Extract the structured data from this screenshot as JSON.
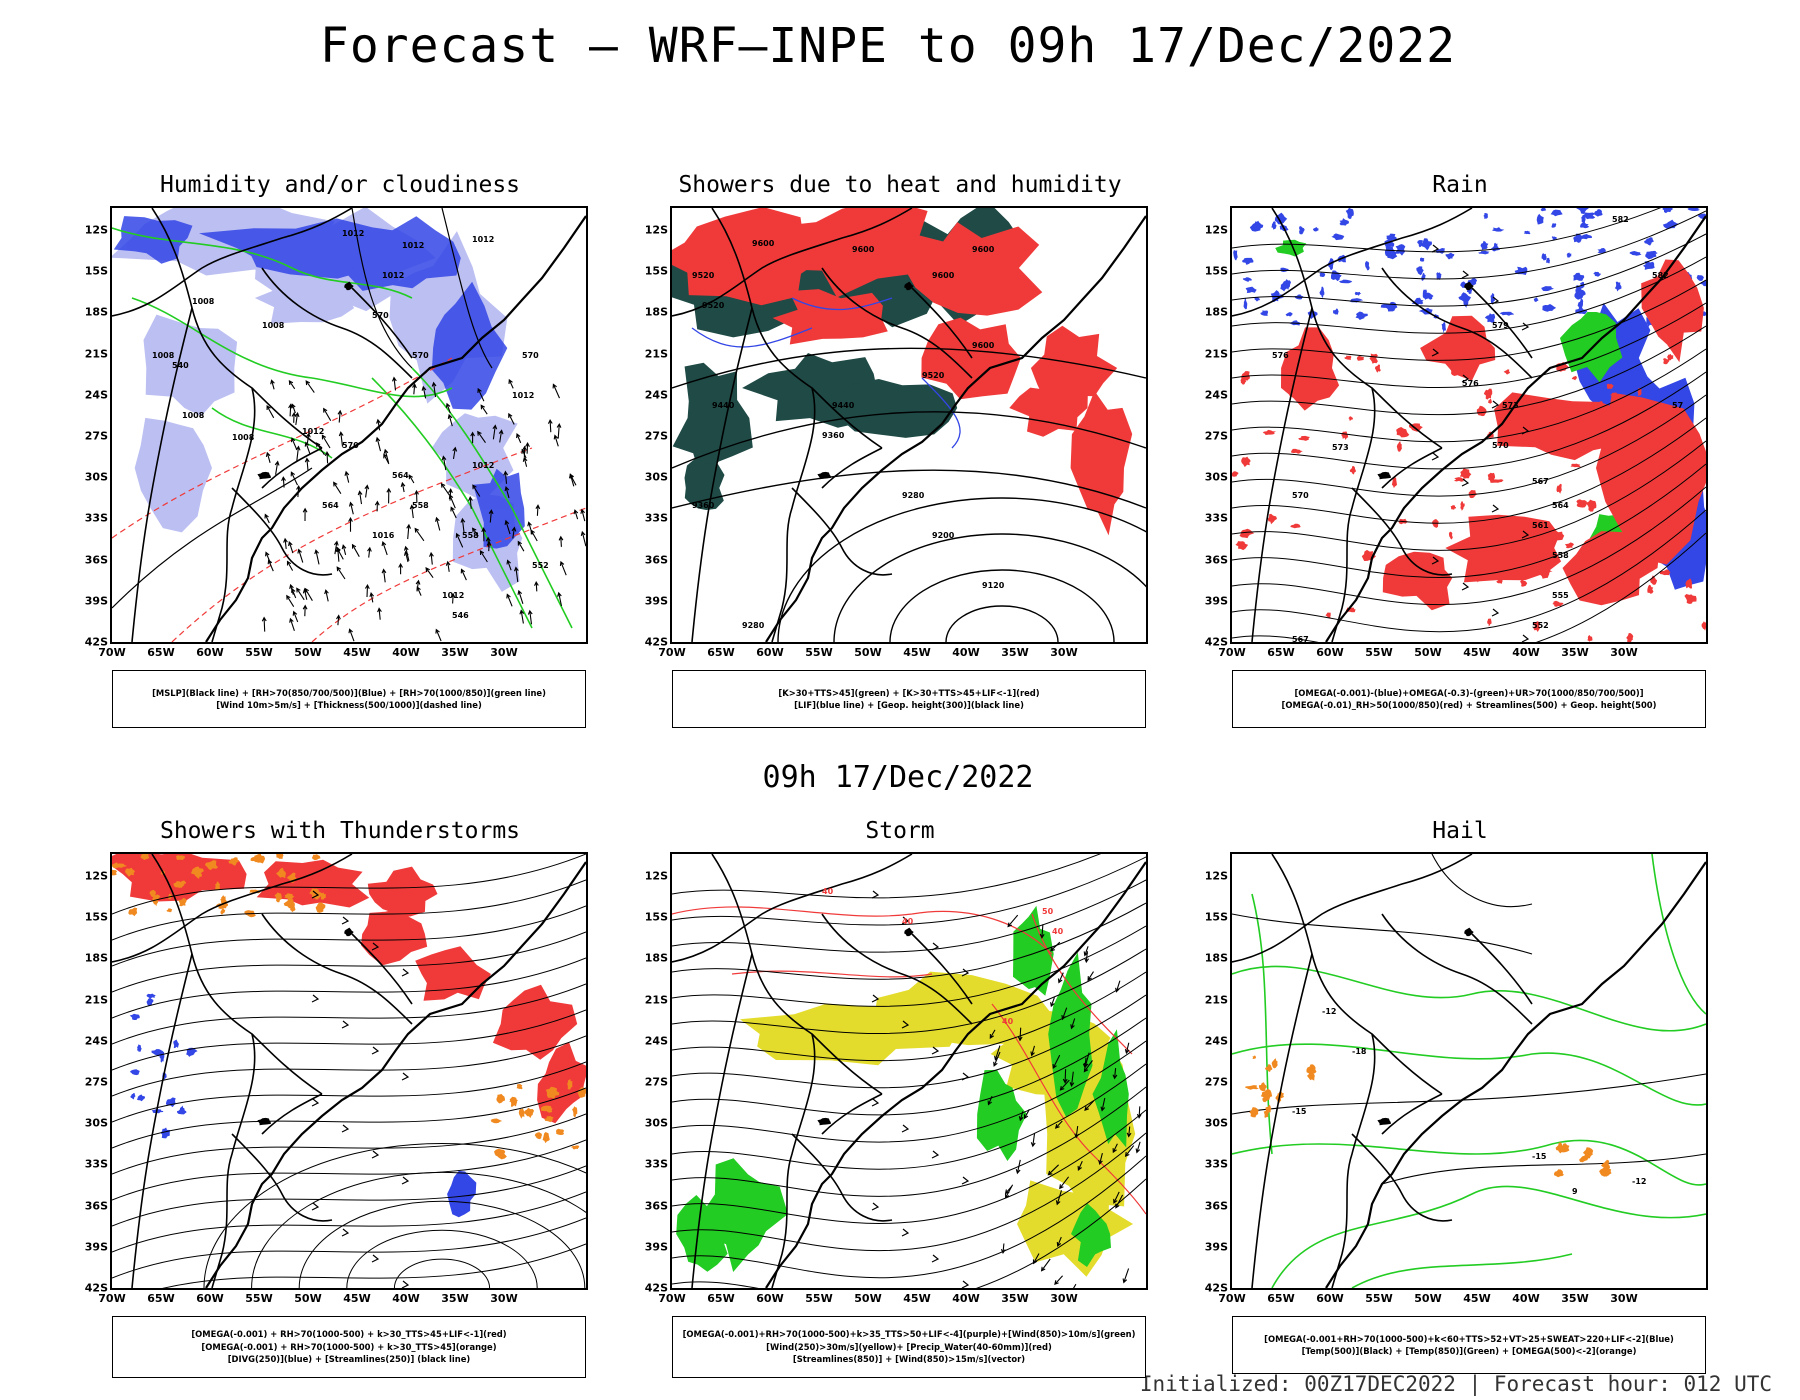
{
  "header": {
    "title": "Forecast – WRF–INPE to 09h 17/Dec/2022"
  },
  "middle_date": "09h 17/Dec/2022",
  "footer": "Initialized: 00Z17DEC2022 | Forecast hour: 012 UTC",
  "axes": {
    "lat_labels": [
      "12S",
      "15S",
      "18S",
      "21S",
      "24S",
      "27S",
      "30S",
      "33S",
      "36S",
      "39S",
      "42S"
    ],
    "lon_labels": [
      "70W",
      "65W",
      "60W",
      "55W",
      "50W",
      "45W",
      "40W",
      "35W",
      "30W"
    ]
  },
  "colors": {
    "blue": "#3346e6",
    "green": "#22cc22",
    "red": "#f03a3a",
    "dark_green": "#1f4a46",
    "orange": "#f08a20",
    "yellow": "#e4dc2c"
  },
  "panels": [
    {
      "title": "Humidity and/or cloudiness",
      "legend": [
        "[MSLP](Black line) + [RH>70(850/700/500)](Blue) + [RH>70(1000/850)](green line)",
        "[Wind 10m>5m/s] + [Thickness(500/1000)](dashed line)"
      ],
      "contour_labels": [
        "1012",
        "1012",
        "1012",
        "1012",
        "1008",
        "1008",
        "1008",
        "1008",
        "1008",
        "1012",
        "1012",
        "1012",
        "1016",
        "1012",
        "570",
        "570",
        "570",
        "570",
        "564",
        "564",
        "558",
        "558",
        "552",
        "546",
        "540"
      ]
    },
    {
      "title": "Showers due to heat and humidity",
      "legend": [
        "[K>30+TTS>45](green) + [K>30+TTS>45+LIF<-1](red)",
        "[LIF](blue line) + [Geop. height(300)](black line)"
      ],
      "contour_labels": [
        "9600",
        "9600",
        "9600",
        "9600",
        "9520",
        "9520",
        "9440",
        "9440",
        "9600",
        "9520",
        "9360",
        "9360",
        "9280",
        "9200",
        "9120",
        "9280"
      ]
    },
    {
      "title": "Rain",
      "legend": [
        "[OMEGA(-0.001)-(blue)+OMEGA(-0.3)-(green)+UR>70(1000/850/700/500)]",
        "[OMEGA(-0.01)_RH>50(1000/850)(red) + Streamlines(500) + Geop. height(500)"
      ],
      "contour_labels": [
        "582",
        "582",
        "579",
        "576",
        "573",
        "573",
        "570",
        "570",
        "567",
        "564",
        "561",
        "558",
        "555",
        "552",
        "567",
        "576",
        "57"
      ]
    },
    {
      "title": "Showers with Thunderstorms",
      "legend": [
        "[OMEGA(-0.001) + RH>70(1000-500) + k>30_TTS>45+LIF<-1](red)",
        "[OMEGA(-0.001) + RH>70(1000-500) + k>30_TTS>45](orange)",
        "[DIVG(250)](blue) + [Streamlines(250)] (black line)"
      ],
      "contour_labels": []
    },
    {
      "title": "Storm",
      "legend": [
        "[OMEGA(-0.001)+RH>70(1000-500)+k>35_TTS>50+LIF<-4](purple)+[Wind(850)>10m/s](green)",
        "[Wind(250)>30m/s](yellow)+ [Precip_Water(40-60mm)](red)",
        "[Streamlines(850)] + [Wind(850)>15m/s](vector)"
      ],
      "contour_labels": [
        "40",
        "40",
        "50",
        "40",
        "40"
      ]
    },
    {
      "title": "Hail",
      "legend": [
        "[OMEGA(-0.001+RH>70(1000-500)+k<60+TTS>52+VT>25+SWEAT>220+LIF<-2](Blue)",
        "[Temp(500)](Black) + [Temp(850)](Green) + [OMEGA(500)<-2](orange)"
      ],
      "contour_labels": [
        "-15",
        "-12",
        "-18",
        "-15",
        "-12",
        "9"
      ]
    }
  ]
}
